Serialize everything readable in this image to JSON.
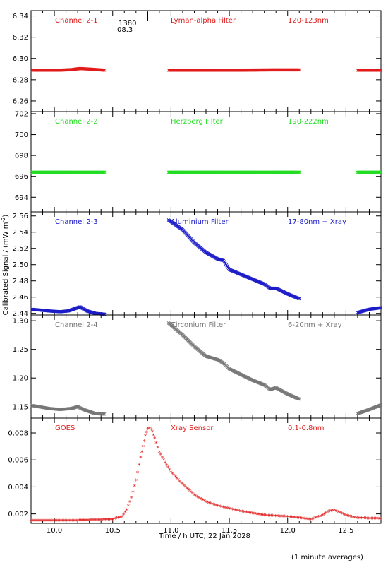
{
  "figure": {
    "xlabel": "Time / h UTC, 22 Jan 2028",
    "ylabel": "Calibrated Signal / (mW m",
    "ylabel_sup": "-2",
    "ylabel_end": ")",
    "footnote": "(1 minute averages)",
    "marker_text": [
      "1380",
      "08.3"
    ]
  },
  "chart_data": [
    {
      "type": "scatter",
      "panel_title": "Channel 2-1",
      "filter": "Lyman-alpha Filter",
      "band": "120-123nm",
      "color": "#e11b1b",
      "xlim": [
        9.8,
        12.8
      ],
      "ylim": [
        6.25,
        6.345
      ],
      "yticks": [
        6.26,
        6.28,
        6.3,
        6.32,
        6.34
      ],
      "ytick_labels": [
        "6.26",
        "6.28",
        "6.30",
        "6.32",
        "6.34"
      ],
      "segments": [
        {
          "x": [
            9.81,
            10.05,
            10.15,
            10.22,
            10.3,
            10.43
          ],
          "y": [
            6.289,
            6.289,
            6.2895,
            6.2905,
            6.29,
            6.289
          ]
        },
        {
          "x": [
            10.98,
            11.3,
            11.6,
            11.9,
            12.1
          ],
          "y": [
            6.289,
            6.289,
            6.289,
            6.2893,
            6.2893
          ]
        },
        {
          "x": [
            12.6,
            12.8
          ],
          "y": [
            6.289,
            6.289
          ]
        }
      ]
    },
    {
      "type": "scatter",
      "panel_title": "Channel 2-2",
      "filter": "Herzberg Filter",
      "band": "190-222nm",
      "color": "#22dd22",
      "xlim": [
        9.8,
        12.8
      ],
      "ylim": [
        692.6,
        702.2
      ],
      "yticks": [
        694,
        696,
        698,
        700,
        702
      ],
      "ytick_labels": [
        "694",
        "696",
        "698",
        "700",
        "702"
      ],
      "segments": [
        {
          "x": [
            9.81,
            10.43
          ],
          "y": [
            696.4,
            696.4
          ]
        },
        {
          "x": [
            10.98,
            12.1
          ],
          "y": [
            696.4,
            696.4
          ]
        },
        {
          "x": [
            12.6,
            12.8
          ],
          "y": [
            696.4,
            696.4
          ]
        }
      ]
    },
    {
      "type": "scatter",
      "panel_title": "Channel 2-3",
      "filter": "Aluminium Filter",
      "band": "17-80nm + Xray",
      "color": "#1c1cc8",
      "xlim": [
        9.8,
        12.8
      ],
      "ylim": [
        2.438,
        2.565
      ],
      "yticks": [
        2.44,
        2.46,
        2.48,
        2.5,
        2.52,
        2.54,
        2.56
      ],
      "ytick_labels": [
        "2.44",
        "2.46",
        "2.48",
        "2.50",
        "2.52",
        "2.54",
        "2.56"
      ],
      "segments": [
        {
          "x": [
            9.81,
            9.95,
            10.05,
            10.12,
            10.18,
            10.22,
            10.28,
            10.35,
            10.43
          ],
          "y": [
            2.445,
            2.443,
            2.442,
            2.443,
            2.446,
            2.448,
            2.443,
            2.44,
            2.439
          ]
        },
        {
          "x": [
            10.98,
            11.1,
            11.2,
            11.3,
            11.4,
            11.45,
            11.5,
            11.6,
            11.7,
            11.8,
            11.85,
            11.9,
            12.0,
            12.1
          ],
          "y": [
            2.555,
            2.543,
            2.527,
            2.515,
            2.507,
            2.505,
            2.494,
            2.488,
            2.482,
            2.476,
            2.471,
            2.471,
            2.464,
            2.458
          ]
        },
        {
          "x": [
            12.6,
            12.7,
            12.8
          ],
          "y": [
            2.441,
            2.445,
            2.447
          ]
        }
      ]
    },
    {
      "type": "scatter",
      "panel_title": "Channel 2-4",
      "filter": "Zirconium Filter",
      "band": "6-20nm + Xray",
      "color": "#777777",
      "xlim": [
        9.8,
        12.8
      ],
      "ylim": [
        1.13,
        1.31
      ],
      "yticks": [
        1.15,
        1.2,
        1.25,
        1.3
      ],
      "ytick_labels": [
        "1.15",
        "1.20",
        "1.25",
        "1.30"
      ],
      "segments": [
        {
          "x": [
            9.81,
            9.95,
            10.05,
            10.15,
            10.2,
            10.25,
            10.35,
            10.43
          ],
          "y": [
            1.152,
            1.147,
            1.145,
            1.147,
            1.15,
            1.145,
            1.138,
            1.137
          ]
        },
        {
          "x": [
            10.98,
            11.1,
            11.2,
            11.3,
            11.4,
            11.45,
            11.5,
            11.6,
            11.7,
            11.8,
            11.85,
            11.9,
            12.0,
            12.1
          ],
          "y": [
            1.296,
            1.275,
            1.255,
            1.238,
            1.232,
            1.226,
            1.216,
            1.206,
            1.196,
            1.188,
            1.18,
            1.183,
            1.172,
            1.163
          ]
        },
        {
          "x": [
            12.6,
            12.7,
            12.8
          ],
          "y": [
            1.138,
            1.145,
            1.153
          ]
        }
      ]
    },
    {
      "type": "scatter",
      "panel_title": "GOES",
      "filter": "Xray Sensor",
      "band": "0.1-0.8nm",
      "color": "#e11b1b",
      "xlim": [
        9.8,
        12.8
      ],
      "xticks": [
        10.0,
        10.5,
        11.0,
        11.5,
        12.0,
        12.5
      ],
      "xtick_labels": [
        "10.0",
        "10.5",
        "11.0",
        "11.5",
        "12.0",
        "12.5"
      ],
      "ylim": [
        0.0013,
        0.0091
      ],
      "yticks": [
        0.002,
        0.004,
        0.006,
        0.008
      ],
      "ytick_labels": [
        "0.002",
        "0.004",
        "0.006",
        "0.008"
      ],
      "segments": [
        {
          "x": [
            9.8,
            10.2,
            10.5,
            10.58,
            10.62,
            10.66,
            10.7,
            10.74,
            10.76,
            10.78,
            10.8,
            10.82,
            10.84,
            10.86,
            10.9,
            10.95,
            11.0,
            11.1,
            11.2,
            11.3,
            11.4,
            11.5,
            11.6,
            11.8,
            12.0,
            12.2,
            12.3,
            12.35,
            12.4,
            12.5,
            12.6,
            12.8
          ],
          "y": [
            0.00152,
            0.00152,
            0.0016,
            0.0018,
            0.0023,
            0.0032,
            0.0045,
            0.0062,
            0.007,
            0.0078,
            0.0083,
            0.0084,
            0.0081,
            0.0076,
            0.0066,
            0.0058,
            0.0051,
            0.0042,
            0.0034,
            0.0029,
            0.0026,
            0.0024,
            0.0022,
            0.0019,
            0.0018,
            0.0016,
            0.0019,
            0.0022,
            0.0023,
            0.0019,
            0.0017,
            0.00165
          ]
        }
      ]
    }
  ]
}
